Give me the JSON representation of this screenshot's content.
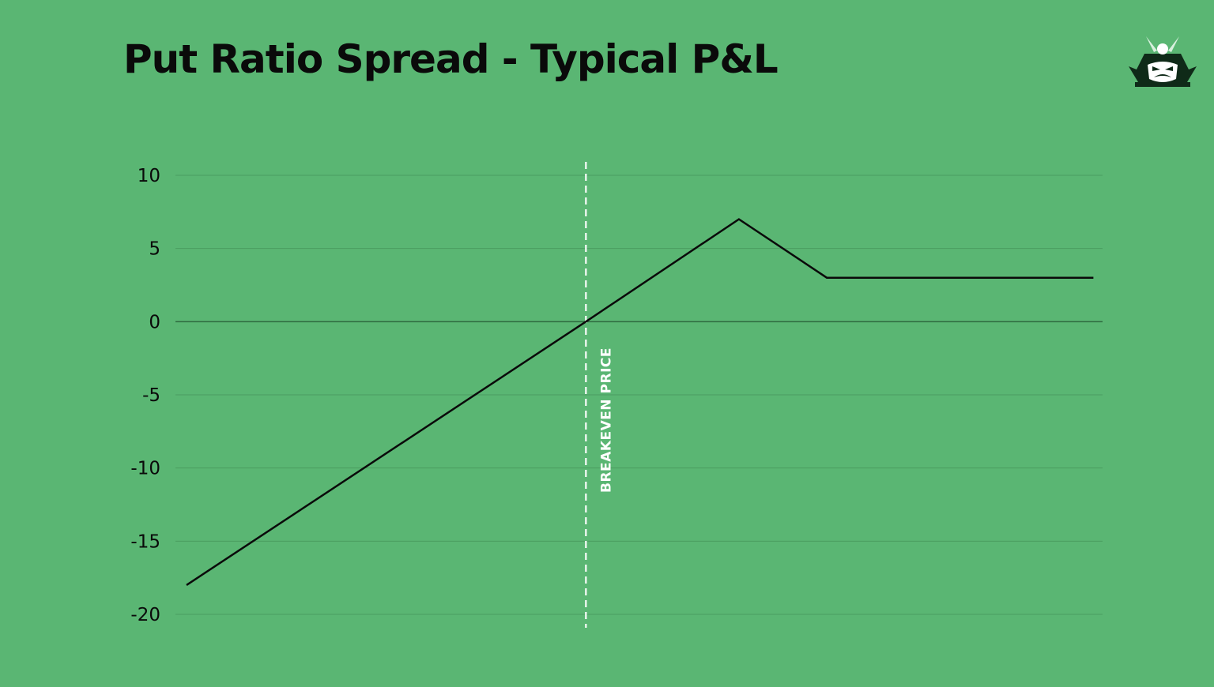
{
  "title": "Put Ratio Spread - Typical P&L",
  "colors": {
    "background": "#5ab673",
    "gridline": "#4a9c60",
    "zero_line": "#2f6b40",
    "line": "#0a0a0a",
    "breakeven": "#e8f5ec"
  },
  "logo": {
    "icon": "samurai-logo-icon"
  },
  "chart_data": {
    "type": "line",
    "title": "Put Ratio Spread - Typical P&L",
    "xlabel": "",
    "ylabel": "",
    "ylim": [
      -20,
      10
    ],
    "xlim": [
      0,
      100
    ],
    "yticks": [
      10,
      5,
      0,
      -5,
      -10,
      -15,
      -20
    ],
    "yticklabels": [
      "10",
      "5",
      "0",
      "-5",
      "-10",
      "-15",
      "-20"
    ],
    "grid": true,
    "legend": "none",
    "series": [
      {
        "x": [
          0,
          43.6,
          60.3,
          69.9,
          99.0
        ],
        "y": [
          -18,
          0,
          7,
          3,
          3
        ]
      }
    ],
    "annotations": [
      {
        "type": "vline",
        "x": 43.6,
        "style": "dashed",
        "label": "BREAKEVEN PRICE"
      }
    ]
  }
}
